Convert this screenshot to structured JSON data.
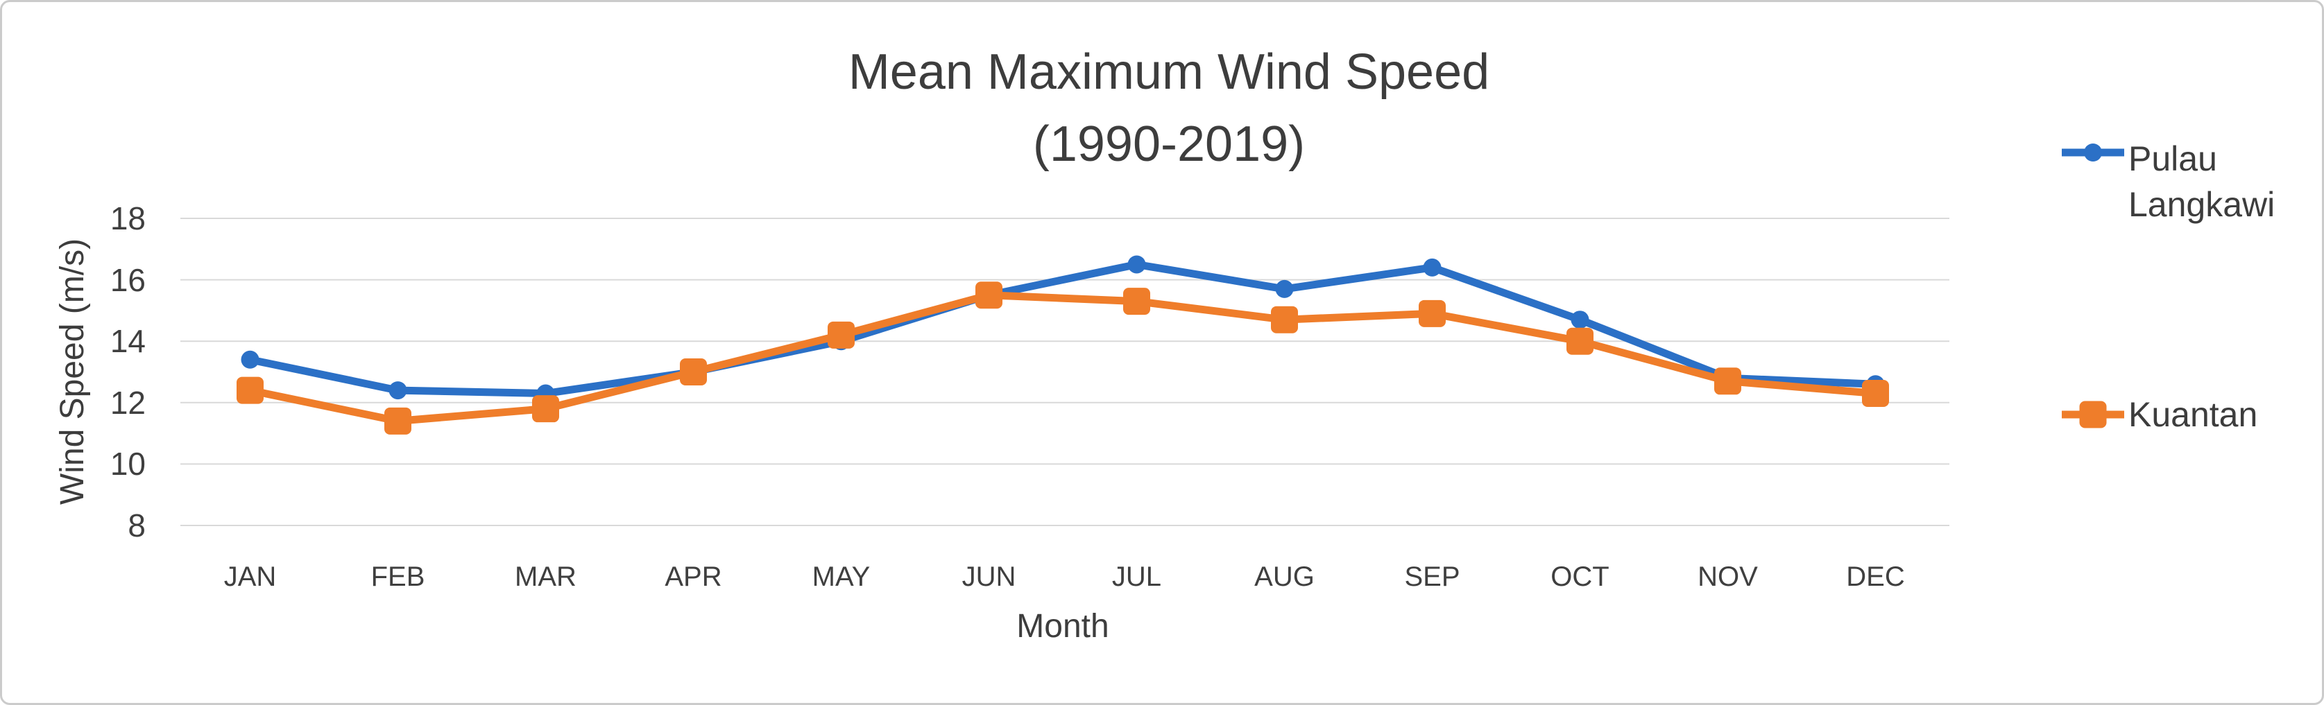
{
  "figure": {
    "background_color": "#ffffff",
    "border_color": "#cbcbcb"
  },
  "chart_data": {
    "type": "line",
    "title": "Mean Maximum Wind Speed",
    "subtitle": "(1990-2019)",
    "xlabel": "Month",
    "ylabel": "Wind Speed (m/s)",
    "categories": [
      "JAN",
      "FEB",
      "MAR",
      "APR",
      "MAY",
      "JUN",
      "JUL",
      "AUG",
      "SEP",
      "OCT",
      "NOV",
      "DEC"
    ],
    "series": [
      {
        "name": "Pulau Langkawi",
        "marker": "circle",
        "color": "#2b70c6",
        "values": [
          13.4,
          12.4,
          12.3,
          13.0,
          14.0,
          15.5,
          16.5,
          15.7,
          16.4,
          14.7,
          12.8,
          12.6
        ]
      },
      {
        "name": "Kuantan",
        "marker": "square",
        "color": "#ef7d2a",
        "values": [
          12.4,
          11.4,
          11.8,
          13.0,
          14.2,
          15.5,
          15.3,
          14.7,
          14.9,
          14.0,
          12.7,
          12.3
        ]
      }
    ],
    "ylim": [
      8,
      18
    ],
    "yticks": [
      8,
      10,
      12,
      14,
      16,
      18
    ],
    "grid": true,
    "gridline_color": "#d9d9d9",
    "legend_position": "right",
    "text_color": "#3d3d3d"
  }
}
